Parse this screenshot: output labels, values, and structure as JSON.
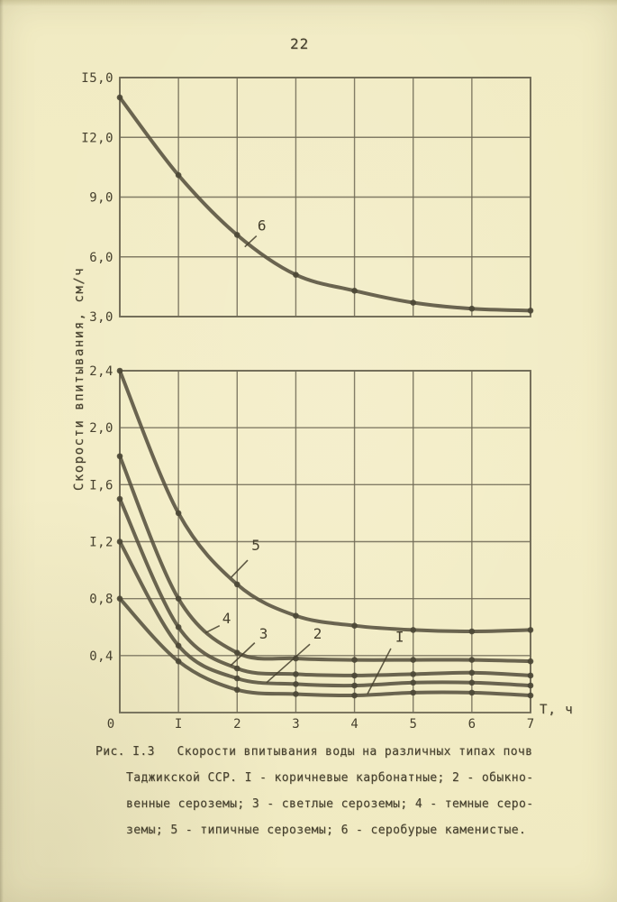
{
  "page": {
    "number": "22",
    "background_color": "#f3edc7",
    "ink_color": "#46402e",
    "grid_color": "#6f6955",
    "curve_color": "#56513f",
    "dot_color": "#4d4836"
  },
  "axes": {
    "y_label": "Скорости впитывания, см/ч",
    "x_label": "Т, ч"
  },
  "caption": {
    "figure_ref": "Рис. I.3",
    "lines": [
      "Рис. I.3   Скорости впитывания воды на различных типах почв",
      "Таджикской ССР. I - коричневые карбонатные; 2 - обыкно-",
      "венные сероземы; 3 - светлые сероземы; 4 - темные серо-",
      "земы; 5 - типичные сероземы; 6 - серобурые каменистые."
    ]
  },
  "chart_data": [
    {
      "id": "upper",
      "type": "line",
      "title": "",
      "xlabel": "",
      "ylabel": "Скорости впитывания, см/ч",
      "grid": true,
      "x": [
        0,
        1,
        2,
        3,
        4,
        5,
        6,
        7
      ],
      "xlim": [
        0,
        7
      ],
      "ylim": [
        3.0,
        15.0
      ],
      "yticks": [
        {
          "value": 15.0,
          "label": "I5,0"
        },
        {
          "value": 12.0,
          "label": "I2,0"
        },
        {
          "value": 9.0,
          "label": "9,0"
        },
        {
          "value": 6.0,
          "label": "6,0"
        },
        {
          "value": 3.0,
          "label": "3,0"
        }
      ],
      "xticks": [],
      "series": [
        {
          "name": "6",
          "label": "6",
          "soil_type": "серобурые каменистые",
          "values": [
            14.0,
            10.1,
            7.1,
            5.1,
            4.3,
            3.7,
            3.4,
            3.3
          ],
          "label_pos": {
            "x": 2.42,
            "y": 7.55
          },
          "leader": {
            "x1": 2.33,
            "y1": 7.05,
            "x2": 2.13,
            "y2": 6.5
          }
        }
      ]
    },
    {
      "id": "lower",
      "type": "line",
      "title": "",
      "xlabel": "Т, ч",
      "ylabel": "Скорости впитывания, см/ч",
      "grid": true,
      "x": [
        0,
        1,
        2,
        3,
        4,
        5,
        6,
        7
      ],
      "xlim": [
        0,
        7
      ],
      "ylim": [
        0,
        2.4
      ],
      "yticks": [
        {
          "value": 2.4,
          "label": "2,4"
        },
        {
          "value": 2.0,
          "label": "2,0"
        },
        {
          "value": 1.6,
          "label": "I,6"
        },
        {
          "value": 1.2,
          "label": "I,2"
        },
        {
          "value": 0.8,
          "label": "0,8"
        },
        {
          "value": 0.4,
          "label": "0,4"
        }
      ],
      "xticks": [
        {
          "value": 0,
          "label": "0"
        },
        {
          "value": 1,
          "label": "I"
        },
        {
          "value": 2,
          "label": "2"
        },
        {
          "value": 3,
          "label": "3"
        },
        {
          "value": 4,
          "label": "4"
        },
        {
          "value": 5,
          "label": "5"
        },
        {
          "value": 6,
          "label": "6"
        },
        {
          "value": 7,
          "label": "7"
        }
      ],
      "series": [
        {
          "name": "5",
          "label": "5",
          "soil_type": "типичные сероземы",
          "values": [
            2.4,
            1.4,
            0.9,
            0.68,
            0.61,
            0.58,
            0.57,
            0.58
          ],
          "label_pos": {
            "x": 2.32,
            "y": 1.17
          },
          "leader": {
            "x1": 2.18,
            "y1": 1.07,
            "x2": 1.9,
            "y2": 0.95
          }
        },
        {
          "name": "4",
          "label": "4",
          "soil_type": "темные сероземы",
          "values": [
            1.8,
            0.8,
            0.42,
            0.38,
            0.37,
            0.37,
            0.37,
            0.36
          ],
          "label_pos": {
            "x": 1.82,
            "y": 0.66
          },
          "leader": {
            "x1": 1.7,
            "y1": 0.61,
            "x2": 1.46,
            "y2": 0.56
          }
        },
        {
          "name": "3",
          "label": "3",
          "soil_type": "светлые сероземы",
          "values": [
            1.5,
            0.6,
            0.31,
            0.27,
            0.26,
            0.27,
            0.28,
            0.26
          ],
          "label_pos": {
            "x": 2.45,
            "y": 0.55
          },
          "leader": {
            "x1": 2.3,
            "y1": 0.49,
            "x2": 1.89,
            "y2": 0.33
          }
        },
        {
          "name": "2",
          "label": "2",
          "soil_type": "обыкновенные сероземы",
          "values": [
            1.2,
            0.47,
            0.24,
            0.2,
            0.19,
            0.21,
            0.21,
            0.19
          ],
          "label_pos": {
            "x": 3.37,
            "y": 0.55
          },
          "leader": {
            "x1": 3.24,
            "y1": 0.48,
            "x2": 2.5,
            "y2": 0.21
          }
        },
        {
          "name": "1",
          "label": "I",
          "soil_type": "коричневые карбонатные",
          "values": [
            0.8,
            0.36,
            0.16,
            0.13,
            0.12,
            0.14,
            0.14,
            0.12
          ],
          "label_pos": {
            "x": 4.77,
            "y": 0.53
          },
          "leader": {
            "x1": 4.62,
            "y1": 0.45,
            "x2": 4.22,
            "y2": 0.13
          }
        }
      ]
    }
  ]
}
